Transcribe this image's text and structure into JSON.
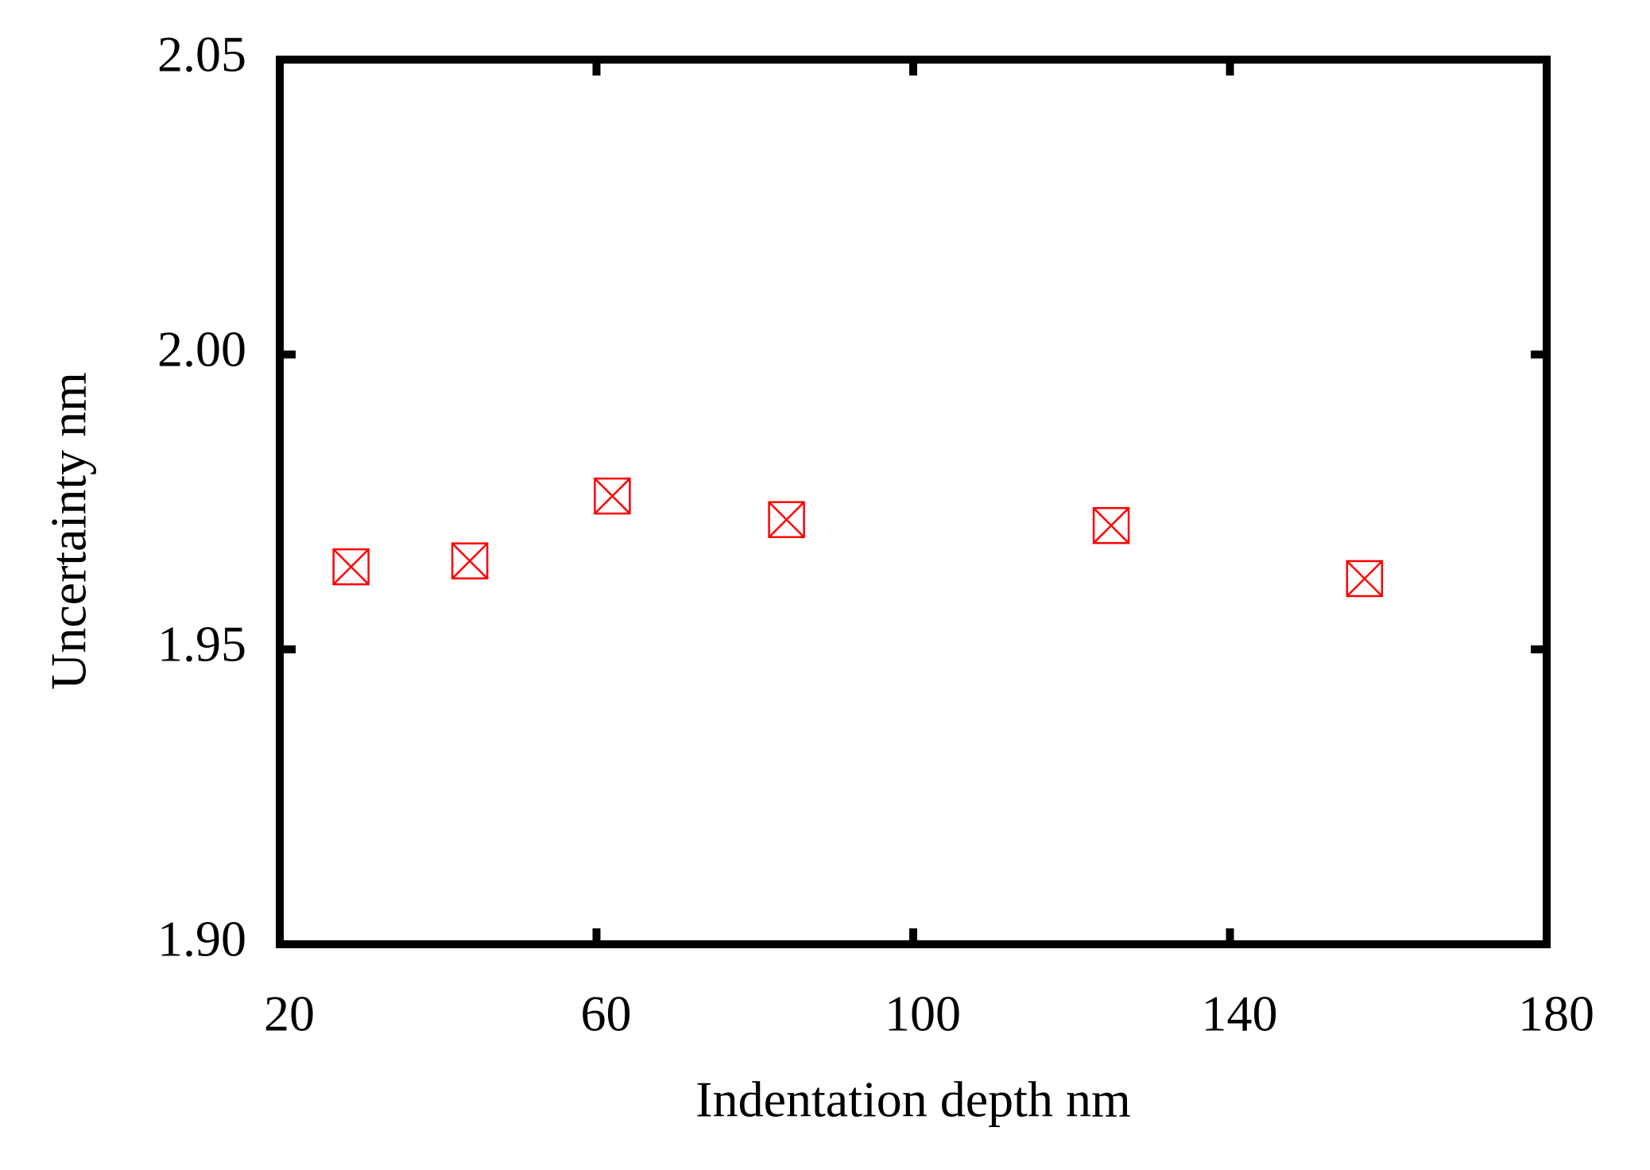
{
  "chart_data": {
    "type": "scatter",
    "x_label": "Indentation depth  nm",
    "y_label": "Uncertainty  nm",
    "x": [
      29,
      44,
      62,
      84,
      125,
      157
    ],
    "values": [
      1.964,
      1.965,
      1.976,
      1.972,
      1.971,
      1.962
    ],
    "color": "#ff0000",
    "xlim": [
      20,
      180
    ],
    "xticks": [
      20,
      60,
      100,
      140,
      180
    ],
    "ylim": [
      1.9,
      2.05
    ],
    "yticks": [
      {
        "value": 1.9,
        "label": "1.90"
      },
      {
        "value": 1.95,
        "label": "1.95"
      },
      {
        "value": 2.0,
        "label": "2.00"
      },
      {
        "value": 2.05,
        "label": "2.05"
      }
    ],
    "grid": false
  }
}
